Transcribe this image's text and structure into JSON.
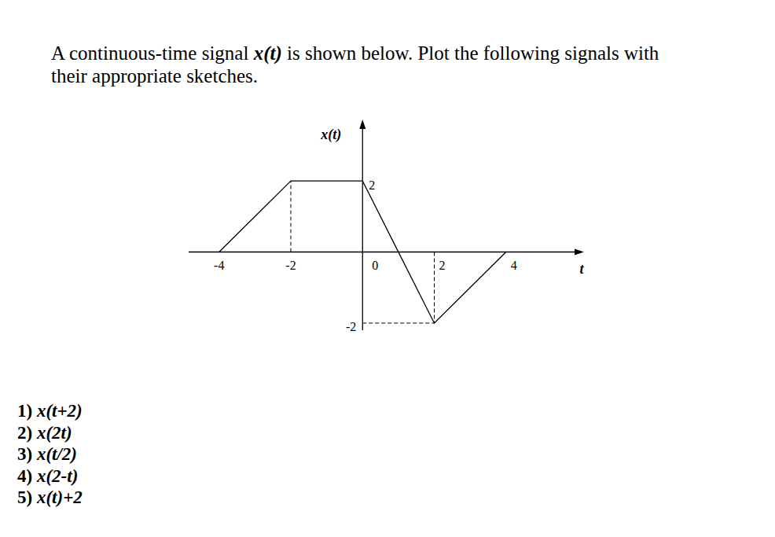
{
  "question": {
    "lines": [
      "A continuous-time signal x(t) is shown below. Plot the following signals with",
      "their appropriate sketches."
    ],
    "emphasis": "x(t)"
  },
  "chart_data": {
    "type": "line",
    "x": [
      -4,
      -2,
      0,
      2,
      4
    ],
    "values": [
      0,
      2,
      2,
      -2,
      0
    ],
    "xlabel": "t",
    "ylabel": "x(t)",
    "xlim": [
      -4.85,
      6
    ],
    "ylim": [
      -2.2,
      3.55
    ],
    "xticks": [
      -4,
      -2,
      0,
      2,
      4
    ],
    "yticks": [
      -2,
      2
    ],
    "color": "#000000",
    "grid": false
  },
  "tasks": [
    {
      "number": "1)",
      "expr": "x(t+2)"
    },
    {
      "number": "2)",
      "expr": "x(2t)"
    },
    {
      "number": "3)",
      "expr": "x(t/2)"
    },
    {
      "number": "4)",
      "expr": "x(2-t)"
    },
    {
      "number": "5)",
      "expr": "x(t)+2"
    }
  ]
}
